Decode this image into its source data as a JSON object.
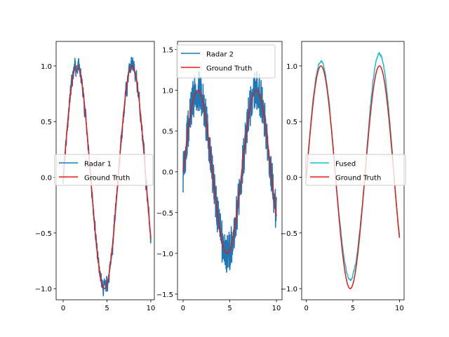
{
  "chart_data": [
    {
      "type": "line",
      "xlim": [
        -0.8,
        10.4
      ],
      "ylim": [
        -1.1,
        1.22
      ],
      "xticks": [
        0,
        5,
        10
      ],
      "xtick_labels": [
        "0",
        "5",
        "10"
      ],
      "yticks": [
        -1.0,
        -0.5,
        0.0,
        0.5,
        1.0
      ],
      "ytick_labels": [
        "−1.0",
        "−0.5",
        "0.0",
        "0.5",
        "1.0"
      ],
      "legend_position": "center-left",
      "series": [
        {
          "name": "Radar 1",
          "color": "#1f77b4",
          "noise_amplitude": 0.06,
          "seed": 11
        },
        {
          "name": "Ground Truth",
          "color": "#e41a1c",
          "function": "sin(x)"
        }
      ]
    },
    {
      "type": "line",
      "xlim": [
        -0.6,
        10.6
      ],
      "ylim": [
        -1.57,
        1.6
      ],
      "xticks": [
        0,
        5,
        10
      ],
      "xtick_labels": [
        "0",
        "5",
        "10"
      ],
      "yticks": [
        -1.5,
        -1.0,
        -0.5,
        0.0,
        0.5,
        1.0,
        1.5
      ],
      "ytick_labels": [
        "−1.5",
        "−1.0",
        "−0.5",
        "0.0",
        "0.5",
        "1.0",
        "1.5"
      ],
      "legend_position": "top-left",
      "series": [
        {
          "name": "Radar 2",
          "color": "#1f77b4",
          "noise_amplitude": 0.18,
          "seed": 29
        },
        {
          "name": "Ground Truth",
          "color": "#e41a1c",
          "function": "sin(x)"
        }
      ]
    },
    {
      "type": "line",
      "xlim": [
        -0.5,
        10.5
      ],
      "ylim": [
        -1.1,
        1.22
      ],
      "xticks": [
        0,
        5,
        10
      ],
      "xtick_labels": [
        "0",
        "5",
        "10"
      ],
      "yticks": [
        -1.0,
        -0.5,
        0.0,
        0.5,
        1.0
      ],
      "ytick_labels": [
        "−1.0",
        "−0.5",
        "0.0",
        "0.5",
        "1.0"
      ],
      "legend_position": "center-right",
      "series": [
        {
          "name": "Fused",
          "color": "#17becf",
          "noise_amplitude": 0.01,
          "seed": 7,
          "peak_values": [
            1.04,
            1.11
          ],
          "trough_values": [
            -0.92,
            -0.97
          ]
        },
        {
          "name": "Ground Truth",
          "color": "#e41a1c",
          "function": "sin(x)"
        }
      ]
    }
  ]
}
